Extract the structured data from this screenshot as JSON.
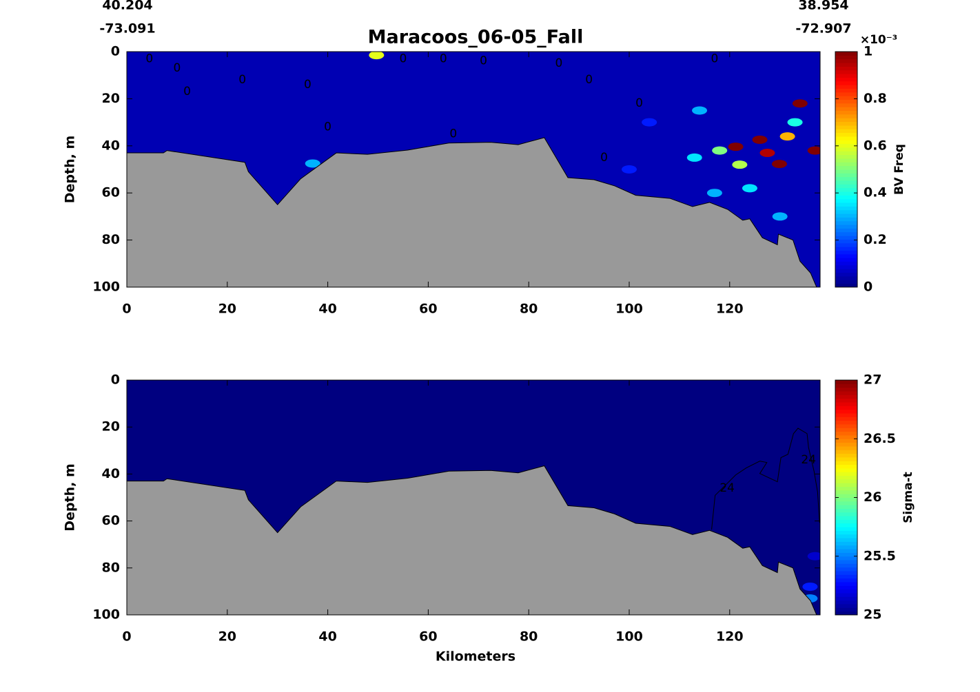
{
  "chart_data": [
    {
      "type": "contour",
      "title": "Maracoos_06-05_Fall",
      "start_lat": "40.204",
      "start_lon": "-73.091",
      "end_lat": "38.954",
      "end_lon": "-72.907",
      "y_label": "Depth, m",
      "xlim": [
        0,
        138
      ],
      "ylim": [
        100,
        0
      ],
      "xticks": [
        0,
        20,
        40,
        60,
        80,
        100,
        120
      ],
      "yticks": [
        0,
        20,
        40,
        60,
        80,
        100
      ],
      "field_value": 0.05,
      "hotspots": [
        {
          "x": 134,
          "depth": 22,
          "value": 1
        },
        {
          "x": 121.2,
          "depth": 40.4,
          "value": 1
        },
        {
          "x": 126,
          "depth": 37.4,
          "value": 1
        },
        {
          "x": 129.9,
          "depth": 47.7,
          "value": 1
        },
        {
          "x": 127.5,
          "depth": 43,
          "value": 0.95
        },
        {
          "x": 137,
          "depth": 42,
          "value": 1
        },
        {
          "x": 131.5,
          "depth": 36,
          "value": 0.7
        },
        {
          "x": 118,
          "depth": 42,
          "value": 0.5
        },
        {
          "x": 122,
          "depth": 48,
          "value": 0.55
        },
        {
          "x": 114,
          "depth": 25,
          "value": 0.3
        },
        {
          "x": 124,
          "depth": 58,
          "value": 0.35
        },
        {
          "x": 113,
          "depth": 45,
          "value": 0.35
        },
        {
          "x": 117,
          "depth": 60,
          "value": 0.3
        },
        {
          "x": 133,
          "depth": 30,
          "value": 0.4
        },
        {
          "x": 130,
          "depth": 70,
          "value": 0.3
        },
        {
          "x": 104,
          "depth": 30,
          "value": 0.15
        },
        {
          "x": 100,
          "depth": 50,
          "value": 0.15
        },
        {
          "x": 49.7,
          "depth": 1.5,
          "value": 0.6
        },
        {
          "x": 37,
          "depth": 47.5,
          "value": 0.3
        }
      ],
      "contour_labels": [
        {
          "text": "0",
          "x": 4.5,
          "depth": 3
        },
        {
          "text": "0",
          "x": 10,
          "depth": 7
        },
        {
          "text": "0",
          "x": 23,
          "depth": 12
        },
        {
          "text": "0",
          "x": 12,
          "depth": 17
        },
        {
          "text": "0",
          "x": 36,
          "depth": 14
        },
        {
          "text": "0",
          "x": 55,
          "depth": 3
        },
        {
          "text": "0",
          "x": 71,
          "depth": 4
        },
        {
          "text": "0",
          "x": 40,
          "depth": 32
        },
        {
          "text": "0",
          "x": 63,
          "depth": 3
        },
        {
          "text": "0",
          "x": 86,
          "depth": 5
        },
        {
          "text": "0",
          "x": 92,
          "depth": 12
        },
        {
          "text": "0",
          "x": 102,
          "depth": 22
        },
        {
          "text": "0",
          "x": 65,
          "depth": 35
        },
        {
          "text": "0",
          "x": 95,
          "depth": 45
        },
        {
          "text": "0",
          "x": 117,
          "depth": 3
        }
      ],
      "bathymetry": {
        "x": [
          0,
          7.3,
          8.0,
          23.5,
          24.2,
          30,
          34.6,
          41.7,
          47.9,
          55.9,
          64.1,
          72.4,
          77.9,
          83.1,
          87.8,
          93,
          97.1,
          101.3,
          108.1,
          112.6,
          116,
          119.6,
          122.6,
          124,
          126.5,
          129.5,
          129.7,
          132.6,
          134,
          136.1,
          137.3
        ],
        "depth": [
          43,
          43,
          42,
          47,
          51,
          65,
          54,
          43,
          43.6,
          41.8,
          38.8,
          38.5,
          39.5,
          36.5,
          53.5,
          54.4,
          57,
          61,
          62.3,
          65.8,
          64,
          67,
          71.6,
          71,
          79,
          82,
          77.5,
          80,
          89,
          94,
          100
        ]
      },
      "colorbar": {
        "label": "BV Freq",
        "scale_label": "×10⁻³",
        "lim": [
          0,
          1
        ],
        "ticks": [
          0,
          0.2,
          0.4,
          0.6,
          0.8,
          1
        ]
      }
    },
    {
      "type": "contour",
      "x_label": "Kilometers",
      "y_label": "Depth, m",
      "xlim": [
        0,
        138
      ],
      "ylim": [
        100,
        0
      ],
      "xticks": [
        0,
        20,
        40,
        60,
        80,
        100,
        120
      ],
      "yticks": [
        0,
        20,
        40,
        60,
        80,
        100
      ],
      "field_value": 25,
      "hotspots": [
        {
          "x": 136,
          "depth": 88,
          "value": 25.3
        },
        {
          "x": 136,
          "depth": 93,
          "value": 25.5
        },
        {
          "x": 137,
          "depth": 75,
          "value": 25.15
        }
      ],
      "contour_line": {
        "level": 24,
        "x": [
          116.4,
          117.1,
          121.2,
          123.3,
          126.0,
          127.4,
          126.0,
          129.5,
          130.2,
          131.6,
          132.7,
          133.6,
          135.4,
          135.7,
          136.8,
          137.5,
          137.9
        ],
        "depth": [
          63.7,
          49.1,
          40.4,
          37.4,
          34.5,
          35.1,
          39.8,
          43.3,
          33.0,
          31.6,
          22.8,
          20.5,
          22.8,
          28.7,
          38.9,
          47.7,
          60.8
        ]
      },
      "contour_labels": [
        {
          "text": "24",
          "x": 119.5,
          "depth": 46
        },
        {
          "text": "24",
          "x": 135.7,
          "depth": 34
        }
      ],
      "bathymetry": {
        "x": [
          0,
          7.3,
          8.0,
          23.5,
          24.2,
          30,
          34.6,
          41.7,
          47.9,
          55.9,
          64.1,
          72.4,
          77.9,
          83.1,
          87.8,
          93,
          97.1,
          101.3,
          108.1,
          112.6,
          116,
          119.6,
          122.6,
          124,
          126.5,
          129.5,
          129.7,
          132.6,
          134,
          136.1,
          137.3
        ],
        "depth": [
          43,
          43,
          42,
          47,
          51,
          65,
          54,
          43,
          43.6,
          41.8,
          38.8,
          38.5,
          39.5,
          36.5,
          53.5,
          54.4,
          57,
          61,
          62.3,
          65.8,
          64,
          67,
          71.6,
          71,
          79,
          82,
          77.5,
          80,
          89,
          94,
          100
        ]
      },
      "colorbar": {
        "label": "Sigma-t",
        "lim": [
          25,
          27
        ],
        "ticks": [
          25,
          25.5,
          26,
          26.5,
          27
        ]
      }
    }
  ]
}
